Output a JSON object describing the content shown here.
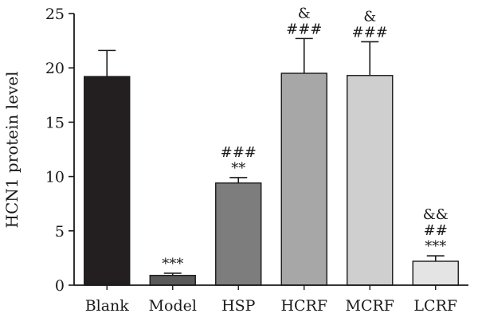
{
  "chart_data": {
    "type": "bar",
    "title": "",
    "xlabel": "",
    "ylabel": "HCN1 protein level",
    "ylim": [
      0,
      25
    ],
    "yticks": [
      0,
      5,
      10,
      15,
      20,
      25
    ],
    "grid": false,
    "categories": [
      "Blank",
      "Model",
      "HSP",
      "HCRF",
      "MCRF",
      "LCRF"
    ],
    "values": [
      19.2,
      0.9,
      9.4,
      19.5,
      19.3,
      2.2
    ],
    "errors": [
      2.4,
      0.2,
      0.5,
      3.2,
      3.1,
      0.5
    ],
    "colors": [
      "#231f20",
      "#5a5a5a",
      "#7d7d7d",
      "#a7a7a7",
      "#cfcfcf",
      "#e4e4e4"
    ],
    "annotations": [
      [],
      [
        "***"
      ],
      [
        "**",
        "###"
      ],
      [
        "###",
        "&"
      ],
      [
        "###",
        "&"
      ],
      [
        "***",
        "##",
        "&&"
      ]
    ]
  }
}
